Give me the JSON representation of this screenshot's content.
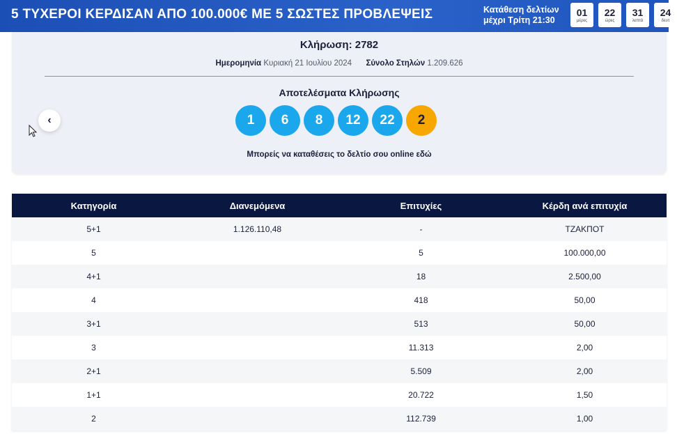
{
  "banner": {
    "title": "5 ΤΥΧΕΡΟΙ ΚΕΡΔΙΣΑΝ ΑΠΟ 100.000€ ΜΕ 5 ΣΩΣΤΕΣ ΠΡΟΒΛΕΨΕΙΣ",
    "deadline_line1": "Κατάθεση δελτίων",
    "deadline_line2": "μέχρι Τρίτη 21:30",
    "countdown": [
      {
        "value": "01",
        "unit": "μέρες"
      },
      {
        "value": "22",
        "unit": "ώρες"
      },
      {
        "value": "31",
        "unit": "λεπτά"
      },
      {
        "value": "24",
        "unit": "δευτ"
      }
    ]
  },
  "draw": {
    "title": "Κλήρωση: 2782",
    "date_label": "Ημερομηνία",
    "date_value": "Κυριακή 21 Ιουλίου 2024",
    "columns_label": "Σύνολο Στηλών",
    "columns_value": "1.209.626",
    "results_title": "Αποτελέσματα Κλήρωσης",
    "numbers": [
      "1",
      "6",
      "8",
      "12",
      "22"
    ],
    "joker": "2",
    "online_text": "Μπορείς να καταθέσεις το δελτίο σου online",
    "online_link": "εδώ",
    "prev_icon": "‹"
  },
  "table": {
    "headers": [
      "Κατηγορία",
      "Διανεμόμενα",
      "Επιτυχίες",
      "Κέρδη ανά επιτυχία"
    ],
    "rows": [
      [
        "5+1",
        "1.126.110,48",
        "-",
        "ΤΖΑΚΠΟΤ"
      ],
      [
        "5",
        "",
        "5",
        "100.000,00"
      ],
      [
        "4+1",
        "",
        "18",
        "2.500,00"
      ],
      [
        "4",
        "",
        "418",
        "50,00"
      ],
      [
        "3+1",
        "",
        "513",
        "50,00"
      ],
      [
        "3",
        "",
        "11.313",
        "2,00"
      ],
      [
        "2+1",
        "",
        "5.509",
        "2,00"
      ],
      [
        "1+1",
        "",
        "20.722",
        "1,50"
      ],
      [
        "2",
        "",
        "112.739",
        "1,00"
      ]
    ]
  },
  "colors": {
    "banner": "#1c4fb5",
    "ball": "#1aa7ec",
    "joker": "#f7a700",
    "table_header": "#0a1740"
  }
}
